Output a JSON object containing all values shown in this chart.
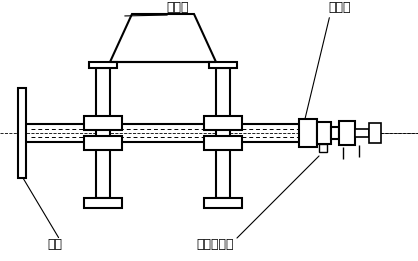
{
  "bg_color": "#ffffff",
  "line_color": "#000000",
  "label_轴承箱": "轴承箱",
  "label_空心轴": "空心轴",
  "label_侧板": "侧板",
  "label_旋转管接头": "旋转管接头",
  "figsize": [
    4.18,
    2.61
  ],
  "dpi": 100
}
